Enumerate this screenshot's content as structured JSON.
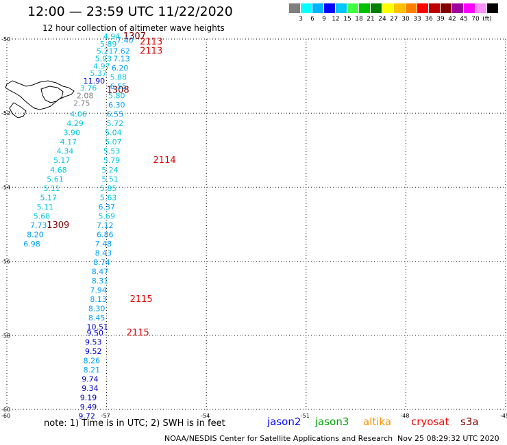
{
  "title": "12:00 — 23:59 UTC 11/22/2020",
  "subtitle": "12 hour collection of altimeter wave heights",
  "legend": {
    "colors": [
      "#7f7f7f",
      "#00ffff",
      "#00b4ff",
      "#0000ff",
      "#00c8ff",
      "#40ff40",
      "#00c000",
      "#008000",
      "#ffff00",
      "#ffc000",
      "#ff8000",
      "#ff0000",
      "#c00000",
      "#800000",
      "#a000a0",
      "#ff00ff",
      "#ff90ff",
      "#000000"
    ],
    "labels": [
      "3",
      "6",
      "9",
      "12",
      "15",
      "18",
      "21",
      "24",
      "27",
      "30",
      "33",
      "36",
      "39",
      "42",
      "45",
      "70",
      "(ft)"
    ]
  },
  "axes": {
    "lat_labels": [
      "-50",
      "-52",
      "-54",
      "-56",
      "-58",
      "-60"
    ],
    "lon_labels": [
      "-60",
      "-57",
      "-54",
      "-51",
      "-48",
      "-45"
    ],
    "lat_values": [
      -50,
      -52,
      -54,
      -56,
      -58,
      -60
    ],
    "lon_values": [
      -60,
      -57,
      -54,
      -51,
      -48,
      -45
    ]
  },
  "chart_data": {
    "type": "scatter",
    "xlim": [
      -60,
      -45
    ],
    "ylim": [
      -60,
      -50
    ],
    "grid": true,
    "tracks": [
      {
        "satellite": "cryosat",
        "points": [
          {
            "lon": -57.1,
            "lat": -50.0,
            "v": "4.94"
          },
          {
            "lon": -57.2,
            "lat": -50.2,
            "v": "5.89"
          },
          {
            "lon": -57.3,
            "lat": -50.4,
            "v": "5.21"
          },
          {
            "lon": -57.35,
            "lat": -50.6,
            "v": "5.93"
          },
          {
            "lon": -57.4,
            "lat": -50.8,
            "v": "4.97"
          },
          {
            "lon": -57.5,
            "lat": -51.0,
            "v": "5.37"
          },
          {
            "lon": -57.7,
            "lat": -51.2,
            "v": "11.90"
          },
          {
            "lon": -57.8,
            "lat": -51.4,
            "v": "3.76"
          },
          {
            "lon": -57.9,
            "lat": -51.6,
            "v": "2.08"
          },
          {
            "lon": -58.0,
            "lat": -51.8,
            "v": "2.75"
          },
          {
            "lon": -58.1,
            "lat": -52.1,
            "v": "4.06"
          },
          {
            "lon": -58.2,
            "lat": -52.35,
            "v": "4.29"
          },
          {
            "lon": -58.3,
            "lat": -52.6,
            "v": "3.90"
          },
          {
            "lon": -58.4,
            "lat": -52.85,
            "v": "4.17"
          },
          {
            "lon": -58.5,
            "lat": -53.1,
            "v": "4.34"
          },
          {
            "lon": -58.6,
            "lat": -53.35,
            "v": "5.17"
          },
          {
            "lon": -58.7,
            "lat": -53.6,
            "v": "4.68"
          },
          {
            "lon": -58.8,
            "lat": -53.85,
            "v": "5.61"
          },
          {
            "lon": -58.9,
            "lat": -54.1,
            "v": "5.11"
          },
          {
            "lon": -59.0,
            "lat": -54.35,
            "v": "5.17"
          },
          {
            "lon": -59.1,
            "lat": -54.6,
            "v": "5.11"
          },
          {
            "lon": -59.2,
            "lat": -54.85,
            "v": "5.68"
          },
          {
            "lon": -59.3,
            "lat": -55.1,
            "v": "7.73"
          },
          {
            "lon": -59.4,
            "lat": -55.35,
            "v": "8.20"
          },
          {
            "lon": -59.5,
            "lat": -55.6,
            "v": "6.98"
          }
        ],
        "time_labels": [
          {
            "lon": -56.5,
            "lat": -50.0,
            "v": "1307"
          },
          {
            "lon": -57.0,
            "lat": -51.45,
            "v": "1308"
          },
          {
            "lon": -58.8,
            "lat": -55.1,
            "v": "1309"
          }
        ]
      },
      {
        "satellite": "s3a",
        "points": [
          {
            "lon": -56.7,
            "lat": -50.1,
            "v": "7.40"
          },
          {
            "lon": -56.8,
            "lat": -50.4,
            "v": "7.62"
          },
          {
            "lon": -56.8,
            "lat": -50.6,
            "v": "7.13"
          },
          {
            "lon": -56.85,
            "lat": -50.85,
            "v": "6.20"
          },
          {
            "lon": -56.9,
            "lat": -51.1,
            "v": "5.88"
          },
          {
            "lon": -56.9,
            "lat": -51.35,
            "v": "6.55"
          },
          {
            "lon": -56.95,
            "lat": -51.6,
            "v": "5.80"
          },
          {
            "lon": -56.95,
            "lat": -51.85,
            "v": "6.30"
          },
          {
            "lon": -57.0,
            "lat": -52.1,
            "v": "6.55"
          },
          {
            "lon": -57.0,
            "lat": -52.35,
            "v": "5.72"
          },
          {
            "lon": -57.05,
            "lat": -52.6,
            "v": "5.04"
          },
          {
            "lon": -57.05,
            "lat": -52.85,
            "v": "5.07"
          },
          {
            "lon": -57.1,
            "lat": -53.1,
            "v": "5.53"
          },
          {
            "lon": -57.1,
            "lat": -53.35,
            "v": "5.79"
          },
          {
            "lon": -57.15,
            "lat": -53.6,
            "v": "5.24"
          },
          {
            "lon": -57.15,
            "lat": -53.85,
            "v": "5.51"
          },
          {
            "lon": -57.2,
            "lat": -54.1,
            "v": "5.85"
          },
          {
            "lon": -57.2,
            "lat": -54.35,
            "v": "5.63"
          },
          {
            "lon": -57.25,
            "lat": -54.6,
            "v": "6.37"
          },
          {
            "lon": -57.25,
            "lat": -54.85,
            "v": "5.69"
          },
          {
            "lon": -57.3,
            "lat": -55.1,
            "v": "7.12"
          },
          {
            "lon": -57.3,
            "lat": -55.35,
            "v": "6.86"
          },
          {
            "lon": -57.35,
            "lat": -55.6,
            "v": "7.48"
          },
          {
            "lon": -57.35,
            "lat": -55.85,
            "v": "8.43"
          },
          {
            "lon": -57.4,
            "lat": -56.1,
            "v": "8.74"
          },
          {
            "lon": -57.45,
            "lat": -56.35,
            "v": "8.47"
          },
          {
            "lon": -57.45,
            "lat": -56.6,
            "v": "8.31"
          },
          {
            "lon": -57.5,
            "lat": -56.85,
            "v": "7.94"
          },
          {
            "lon": -57.5,
            "lat": -57.1,
            "v": "8.13"
          },
          {
            "lon": -57.55,
            "lat": -57.35,
            "v": "8.30"
          },
          {
            "lon": -57.55,
            "lat": -57.6,
            "v": "8.45"
          },
          {
            "lon": -57.6,
            "lat": -57.85,
            "v": "10.51"
          },
          {
            "lon": -57.6,
            "lat": -58.0,
            "v": "9.50"
          },
          {
            "lon": -57.65,
            "lat": -58.25,
            "v": "9.53"
          },
          {
            "lon": -57.65,
            "lat": -58.5,
            "v": "9.52"
          },
          {
            "lon": -57.7,
            "lat": -58.75,
            "v": "8.26"
          },
          {
            "lon": -57.7,
            "lat": -59.0,
            "v": "8.21"
          },
          {
            "lon": -57.75,
            "lat": -59.25,
            "v": "9.74"
          },
          {
            "lon": -57.75,
            "lat": -59.5,
            "v": "9.34"
          },
          {
            "lon": -57.8,
            "lat": -59.75,
            "v": "9.19"
          },
          {
            "lon": -57.8,
            "lat": -60.0,
            "v": "9.49"
          },
          {
            "lon": -57.85,
            "lat": -60.25,
            "v": "9.72"
          }
        ],
        "time_labels": [
          {
            "lon": -56.0,
            "lat": -50.15,
            "v": "2113"
          },
          {
            "lon": -56.0,
            "lat": -50.4,
            "v": "2113"
          },
          {
            "lon": -55.6,
            "lat": -53.35,
            "v": "2114"
          },
          {
            "lon": -56.3,
            "lat": -57.1,
            "v": "2115"
          },
          {
            "lon": -56.4,
            "lat": -58.0,
            "v": "2115"
          }
        ]
      }
    ]
  },
  "note": "note:  1) Time is in UTC; 2) SWH is in feet",
  "satellites": [
    {
      "name": "jason2",
      "color": "#0000ff"
    },
    {
      "name": "jason3",
      "color": "#00a000"
    },
    {
      "name": "altika",
      "color": "#ff9000"
    },
    {
      "name": "cryosat",
      "color": "#ff0000"
    },
    {
      "name": "s3a",
      "color": "#800000"
    }
  ],
  "credit": "NOAA/NESDIS Center for Satellite Applications and Research",
  "timestamp": "Nov 25 08:29:32 UTC 2020"
}
